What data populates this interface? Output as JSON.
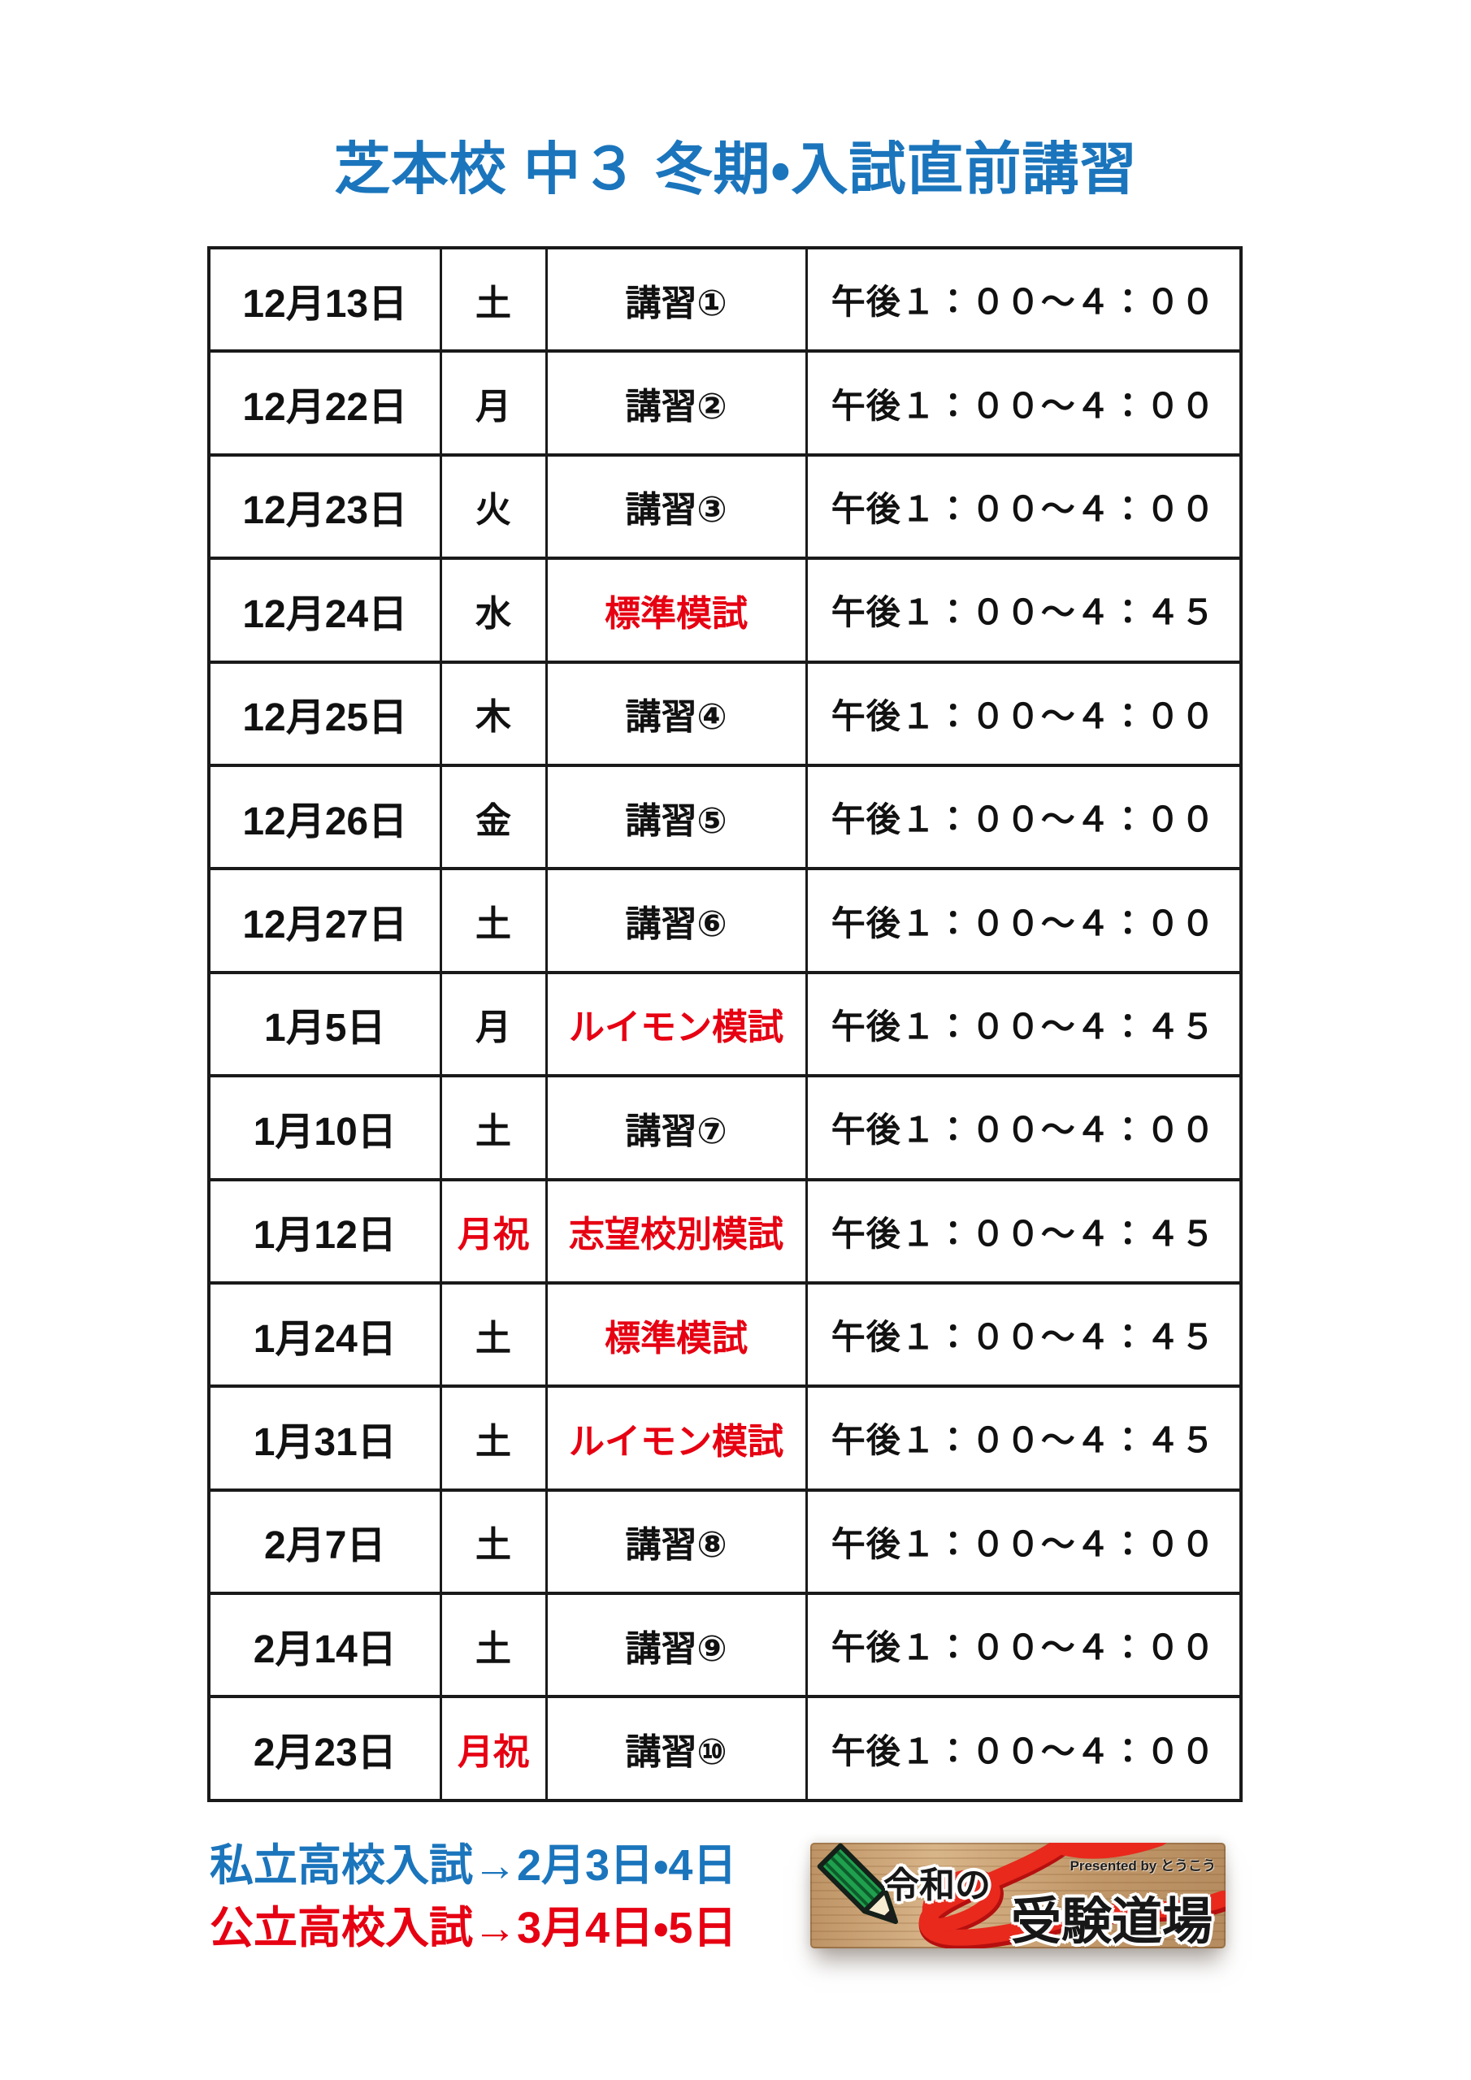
{
  "title": "芝本校 中３ 冬期・入試直前講習",
  "colors": {
    "blue": "#1b75bc",
    "red": "#e60012",
    "table_border": "#1a1a1a",
    "wood_tan": "#cda679",
    "ribbon_red": "#e8291c",
    "pencil_green": "#1fa04e"
  },
  "table": {
    "rows": [
      {
        "date": "12月13日",
        "day": "土",
        "course": "講習①",
        "time": "午後１：００～４：００",
        "day_red": false,
        "course_red": false
      },
      {
        "date": "12月22日",
        "day": "月",
        "course": "講習②",
        "time": "午後１：００～４：００",
        "day_red": false,
        "course_red": false
      },
      {
        "date": "12月23日",
        "day": "火",
        "course": "講習③",
        "time": "午後１：００～４：００",
        "day_red": false,
        "course_red": false
      },
      {
        "date": "12月24日",
        "day": "水",
        "course": "標準模試",
        "time": "午後１：００～４：４５",
        "day_red": false,
        "course_red": true
      },
      {
        "date": "12月25日",
        "day": "木",
        "course": "講習④",
        "time": "午後１：００～４：００",
        "day_red": false,
        "course_red": false
      },
      {
        "date": "12月26日",
        "day": "金",
        "course": "講習⑤",
        "time": "午後１：００～４：００",
        "day_red": false,
        "course_red": false
      },
      {
        "date": "12月27日",
        "day": "土",
        "course": "講習⑥",
        "time": "午後１：００～４：００",
        "day_red": false,
        "course_red": false
      },
      {
        "date": "1月5日",
        "day": "月",
        "course": "ルイモン模試",
        "time": "午後１：００～４：４５",
        "day_red": false,
        "course_red": true
      },
      {
        "date": "1月10日",
        "day": "土",
        "course": "講習⑦",
        "time": "午後１：００～４：００",
        "day_red": false,
        "course_red": false
      },
      {
        "date": "1月12日",
        "day": "月祝",
        "course": "志望校別模試",
        "time": "午後１：００～４：４５",
        "day_red": true,
        "course_red": true
      },
      {
        "date": "1月24日",
        "day": "土",
        "course": "標準模試",
        "time": "午後１：００～４：４５",
        "day_red": false,
        "course_red": true
      },
      {
        "date": "1月31日",
        "day": "土",
        "course": "ルイモン模試",
        "time": "午後１：００～４：４５",
        "day_red": false,
        "course_red": true
      },
      {
        "date": "2月7日",
        "day": "土",
        "course": "講習⑧",
        "time": "午後１：００～４：００",
        "day_red": false,
        "course_red": false
      },
      {
        "date": "2月14日",
        "day": "土",
        "course": "講習⑨",
        "time": "午後１：００～４：００",
        "day_red": false,
        "course_red": false
      },
      {
        "date": "2月23日",
        "day": "月祝",
        "course": "講習⑩",
        "time": "午後１：００～４：００",
        "day_red": true,
        "course_red": false
      }
    ]
  },
  "notes": {
    "private": "私立高校入試→2月3日・4日",
    "public": "公立高校入試→3月4日・5日"
  },
  "logo": {
    "prefix": "令和の",
    "main": "受験道場",
    "presented_by": "Presented by とうこう"
  }
}
